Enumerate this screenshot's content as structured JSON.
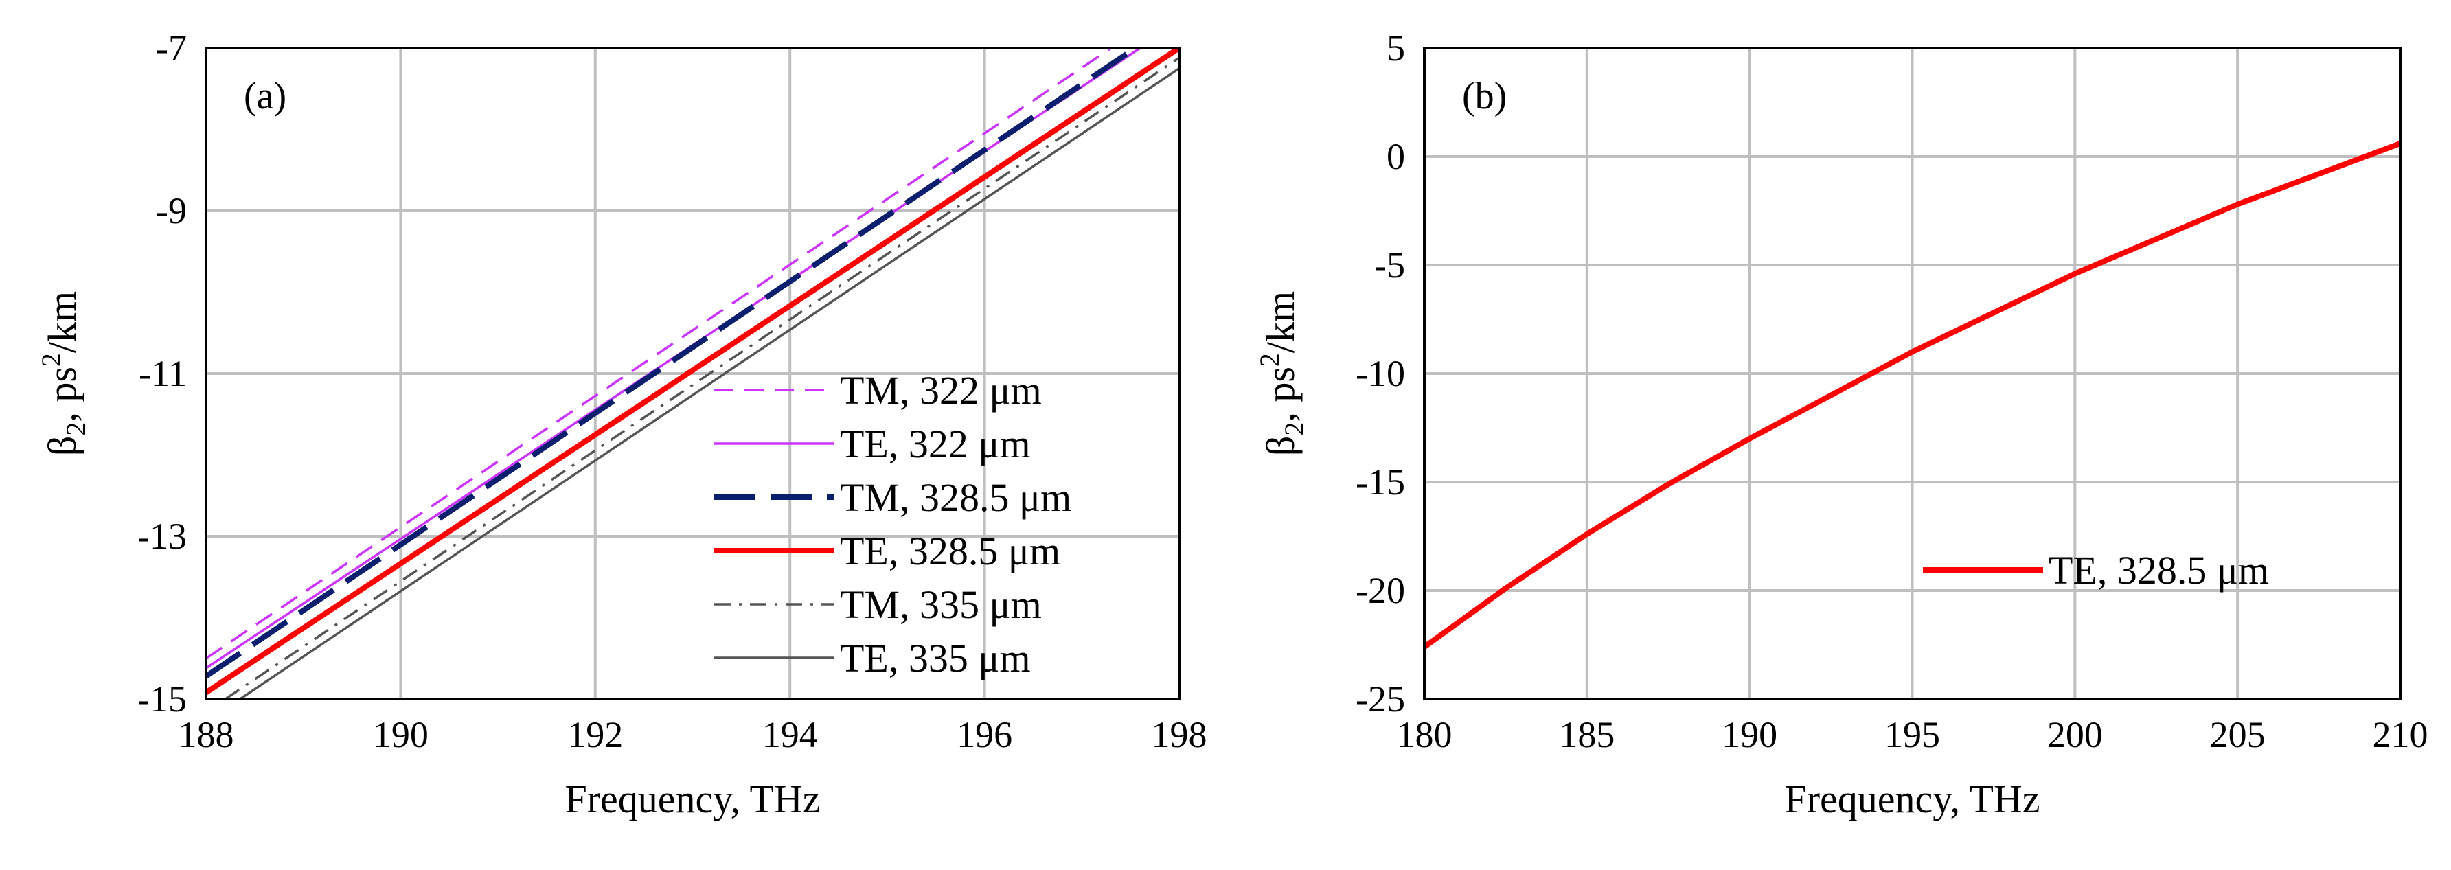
{
  "chart_data": [
    {
      "type": "line",
      "panel_label": "(a)",
      "xlabel": "Frequency, THz",
      "ylabel_parts": [
        "β",
        "2",
        ", ps",
        "2",
        "/km"
      ],
      "xlim": [
        188,
        198
      ],
      "ylim": [
        -15,
        -7
      ],
      "xticks": [
        188,
        190,
        192,
        194,
        196,
        198
      ],
      "yticks": [
        -15,
        -13,
        -11,
        -9,
        -7
      ],
      "grid": true,
      "legend_position": "bottom-right",
      "series": [
        {
          "name": "TM, 322 μm",
          "color": "#cc33ff",
          "style": "dashed",
          "width": "thin",
          "x": [
            188,
            197.3
          ],
          "y": [
            -14.5,
            -7.0
          ]
        },
        {
          "name": "TE,  322 μm",
          "color": "#cc33ff",
          "style": "solid",
          "width": "thin",
          "x": [
            188,
            197.6
          ],
          "y": [
            -14.62,
            -7.0
          ]
        },
        {
          "name": "TM, 328.5 μm",
          "color": "#0a1f6e",
          "style": "longdash",
          "width": "thick",
          "x": [
            188,
            197.55
          ],
          "y": [
            -14.72,
            -7.0
          ]
        },
        {
          "name": "TE,  328.5 μm",
          "color": "#ff0000",
          "style": "solid",
          "width": "thick",
          "x": [
            188,
            198.0
          ],
          "y": [
            -14.92,
            -7.0
          ]
        },
        {
          "name": "TM, 335 μm",
          "color": "#555555",
          "style": "dashdot",
          "width": "thin",
          "x": [
            188.2,
            198.0
          ],
          "y": [
            -15.0,
            -7.12
          ]
        },
        {
          "name": "TE,  335 μm",
          "color": "#555555",
          "style": "solid",
          "width": "thin",
          "x": [
            188.35,
            198.0
          ],
          "y": [
            -15.0,
            -7.25
          ]
        }
      ]
    },
    {
      "type": "line",
      "panel_label": "(b)",
      "xlabel": "Frequency, THz",
      "ylabel_parts": [
        "β",
        "2",
        ", ps",
        "2",
        "/km"
      ],
      "xlim": [
        180,
        210
      ],
      "ylim": [
        -25,
        5
      ],
      "xticks": [
        180,
        185,
        190,
        195,
        200,
        205,
        210
      ],
      "yticks": [
        -25,
        -20,
        -15,
        -10,
        -5,
        0,
        5
      ],
      "grid": true,
      "legend_position": "bottom-right",
      "series": [
        {
          "name": "TE,  328.5 μm",
          "color": "#ff0000",
          "style": "solid",
          "width": "thick",
          "x": [
            180,
            182.5,
            185,
            187.5,
            190,
            192.5,
            195,
            197.5,
            200,
            202.5,
            205,
            207.5,
            210
          ],
          "y": [
            -22.6,
            -19.9,
            -17.4,
            -15.1,
            -13.0,
            -11.0,
            -9.0,
            -7.2,
            -5.4,
            -3.8,
            -2.2,
            -0.8,
            0.6
          ]
        }
      ]
    }
  ]
}
